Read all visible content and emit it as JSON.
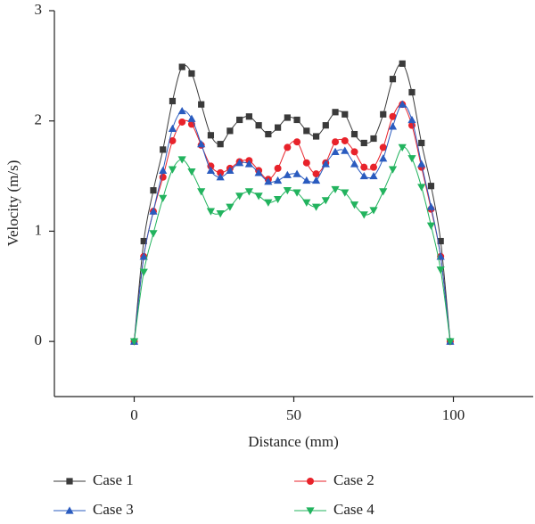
{
  "chart_data": {
    "type": "line",
    "xlabel": "Distance (mm)",
    "ylabel": "Velocity (m/s)",
    "x": [
      0,
      3,
      6,
      9,
      12,
      15,
      18,
      21,
      24,
      27,
      30,
      33,
      36,
      39,
      42,
      45,
      48,
      51,
      54,
      57,
      60,
      63,
      66,
      69,
      72,
      75,
      78,
      81,
      84,
      87,
      90,
      93,
      96,
      99
    ],
    "series": [
      {
        "name": "Case 1",
        "color": "#3a3a3a",
        "marker": "square",
        "values": [
          0,
          0.91,
          1.37,
          1.74,
          2.18,
          2.49,
          2.43,
          2.15,
          1.87,
          1.79,
          1.91,
          2.01,
          2.04,
          1.96,
          1.88,
          1.94,
          2.03,
          2.01,
          1.91,
          1.86,
          1.96,
          2.08,
          2.06,
          1.88,
          1.8,
          1.84,
          2.06,
          2.38,
          2.52,
          2.26,
          1.8,
          1.41,
          0.91,
          0
        ]
      },
      {
        "name": "Case 2",
        "color": "#e8222a",
        "marker": "circle",
        "values": [
          0,
          0.77,
          1.18,
          1.49,
          1.82,
          1.99,
          1.97,
          1.78,
          1.59,
          1.53,
          1.57,
          1.63,
          1.64,
          1.55,
          1.47,
          1.57,
          1.76,
          1.81,
          1.62,
          1.52,
          1.62,
          1.81,
          1.82,
          1.72,
          1.58,
          1.58,
          1.76,
          2.04,
          2.15,
          1.96,
          1.58,
          1.2,
          0.77,
          0
        ]
      },
      {
        "name": "Case 3",
        "color": "#2a5bbf",
        "marker": "triangle-up",
        "values": [
          0,
          0.77,
          1.18,
          1.55,
          1.93,
          2.09,
          2.02,
          1.79,
          1.55,
          1.49,
          1.55,
          1.62,
          1.61,
          1.53,
          1.45,
          1.46,
          1.51,
          1.52,
          1.46,
          1.46,
          1.61,
          1.72,
          1.73,
          1.61,
          1.5,
          1.5,
          1.66,
          1.95,
          2.15,
          2.01,
          1.61,
          1.22,
          0.77,
          0
        ]
      },
      {
        "name": "Case 4",
        "color": "#22b35e",
        "marker": "triangle-down",
        "values": [
          0,
          0.63,
          0.98,
          1.3,
          1.56,
          1.65,
          1.54,
          1.36,
          1.18,
          1.16,
          1.22,
          1.32,
          1.36,
          1.32,
          1.26,
          1.29,
          1.37,
          1.35,
          1.26,
          1.22,
          1.28,
          1.38,
          1.35,
          1.24,
          1.15,
          1.19,
          1.36,
          1.56,
          1.76,
          1.66,
          1.4,
          1.05,
          0.65,
          0
        ]
      }
    ],
    "xlim": [
      -25,
      125
    ],
    "ylim": [
      -0.5,
      3
    ],
    "xticks": [
      0,
      50,
      100
    ],
    "yticks": [
      0,
      1,
      2,
      3
    ],
    "grid": false,
    "legend": "bottom"
  }
}
